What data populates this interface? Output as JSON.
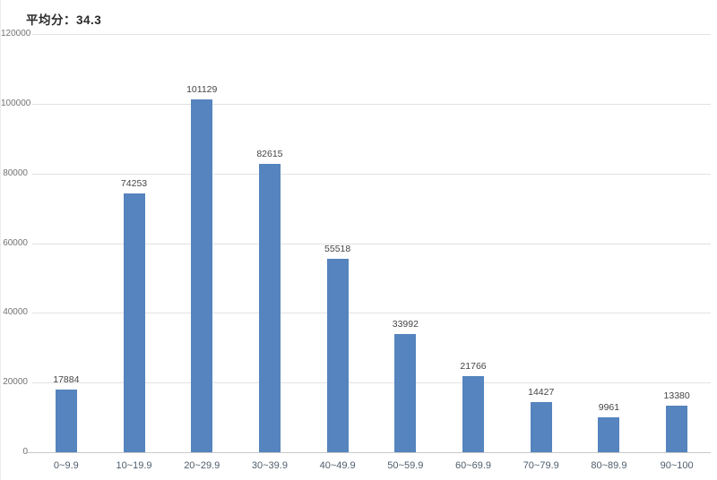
{
  "header": {
    "title": "平均分：34.3"
  },
  "chart_data": {
    "type": "bar",
    "title": "平均分：34.3",
    "categories": [
      "0~9.9",
      "10~19.9",
      "20~29.9",
      "30~39.9",
      "40~49.9",
      "50~59.9",
      "60~69.9",
      "70~79.9",
      "80~89.9",
      "90~100"
    ],
    "values": [
      17884,
      74253,
      101129,
      82615,
      55518,
      33992,
      21766,
      14427,
      9961,
      13380
    ],
    "value_labels": [
      "17884",
      "74253",
      "101129",
      "82615",
      "55518",
      "33992",
      "21766",
      "14427",
      "9961",
      "13380"
    ],
    "xlabel": "",
    "ylabel": "",
    "ylim": [
      0,
      120000
    ],
    "yticks": [
      0,
      20000,
      40000,
      60000,
      80000,
      100000,
      120000
    ],
    "ytick_labels": [
      "0",
      "20000",
      "40000",
      "60000",
      "80000",
      "100000",
      "120000"
    ],
    "grid": true,
    "legend": null,
    "show_value_labels": true,
    "colors": {
      "bar": "#5584be",
      "gridline": "#e2e2e2",
      "axis_line": "#c9c9c9",
      "ytick_text": "#737373",
      "xtick_text": "#4e5d6c",
      "value_text": "#454545",
      "title_text": "#2b2b2b",
      "background": "#ffffff"
    }
  }
}
